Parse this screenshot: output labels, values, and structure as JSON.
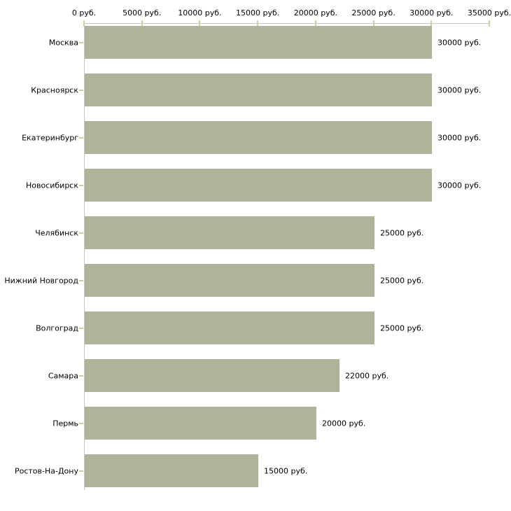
{
  "chart_data": {
    "type": "bar",
    "orientation": "horizontal",
    "title": "",
    "xlabel": "",
    "ylabel": "",
    "unit": "руб.",
    "categories": [
      "Москва",
      "Красноярск",
      "Екатеринбург",
      "Новосибирск",
      "Челябинск",
      "Нижний Новгород",
      "Волгоград",
      "Самара",
      "Пермь",
      "Ростов-На-Дону"
    ],
    "values": [
      30000,
      30000,
      30000,
      30000,
      25000,
      25000,
      25000,
      22000,
      20000,
      15000
    ],
    "value_labels": [
      "30000 руб.",
      "30000 руб.",
      "30000 руб.",
      "30000 руб.",
      "25000 руб.",
      "25000 руб.",
      "25000 руб.",
      "22000 руб.",
      "20000 руб.",
      "15000 руб."
    ],
    "x_tick_values": [
      0,
      5000,
      10000,
      15000,
      20000,
      25000,
      30000,
      35000
    ],
    "x_tick_labels": [
      "0 руб.",
      "5000 руб.",
      "10000 руб.",
      "15000 руб.",
      "20000 руб.",
      "25000 руб.",
      "30000 руб.",
      "35000 руб."
    ],
    "xlim": [
      0,
      35000
    ],
    "legend": null,
    "grid": false,
    "colors": {
      "bar": "#aeb49a",
      "axis": "#c6c6c6",
      "tick": "#d2cda2",
      "text": "#000000",
      "background": "#ffffff"
    }
  }
}
